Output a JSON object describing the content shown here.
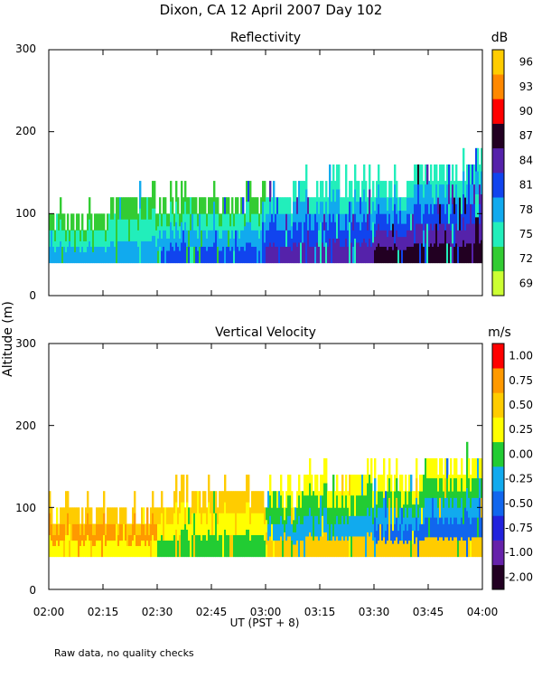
{
  "figure": {
    "title": "Dixon, CA 12 April 2007  Day 102",
    "ylabel": "Altitude (m)",
    "xlabel": "UT  (PST + 8)",
    "footnote": "Raw data, no quality checks"
  },
  "chart_data": [
    {
      "type": "heatmap",
      "title": "Reflectivity",
      "unit": "dB",
      "xticks": [
        "02:00",
        "02:15",
        "02:30",
        "02:45",
        "03:00",
        "03:15",
        "03:30",
        "03:45",
        "04:00"
      ],
      "yticks": [
        "0",
        "100",
        "200",
        "300"
      ],
      "ylim": [
        0,
        300
      ],
      "color_scale": {
        "labels": [
          "69",
          "72",
          "75",
          "78",
          "81",
          "84",
          "87",
          "90",
          "93",
          "96"
        ],
        "colors": [
          "#ccff33",
          "#33cc33",
          "#22eebb",
          "#11aaee",
          "#1144ee",
          "#5522aa",
          "#220022",
          "#ff0000",
          "#ff8800",
          "#ffcc00"
        ]
      },
      "field": {
        "x_range": [
          "02:00",
          "04:00"
        ],
        "base_m": 40,
        "top_m": [
          100,
          120,
          120,
          120,
          140,
          140,
          160
        ],
        "dominant_by_segment": [
          {
            "from": "02:00",
            "to": "02:30",
            "layers": [
              "#33cc33",
              "#22eebb",
              "#11aaee"
            ]
          },
          {
            "from": "02:30",
            "to": "03:00",
            "layers": [
              "#33cc33",
              "#22eebb",
              "#11aaee",
              "#1144ee"
            ]
          },
          {
            "from": "03:00",
            "to": "03:30",
            "layers": [
              "#22eebb",
              "#11aaee",
              "#1144ee",
              "#5522aa"
            ]
          },
          {
            "from": "03:30",
            "to": "04:00",
            "layers": [
              "#22eebb",
              "#11aaee",
              "#1144ee",
              "#5522aa",
              "#220022"
            ]
          }
        ]
      }
    },
    {
      "type": "heatmap",
      "title": "Vertical Velocity",
      "unit": "m/s",
      "xticks": [
        "02:00",
        "02:15",
        "02:30",
        "02:45",
        "03:00",
        "03:15",
        "03:30",
        "03:45",
        "04:00"
      ],
      "yticks": [
        "0",
        "100",
        "200",
        "300"
      ],
      "ylim": [
        0,
        300
      ],
      "color_scale": {
        "labels": [
          "-2.00",
          "-1.00",
          "-0.75",
          "-0.50",
          "-0.25",
          "0.00",
          "0.25",
          "0.50",
          "0.75",
          "1.00"
        ],
        "colors": [
          "#220022",
          "#6622aa",
          "#2222dd",
          "#1166ee",
          "#11aaee",
          "#22cc33",
          "#ffff00",
          "#ffcc00",
          "#ff9900",
          "#ff0000"
        ]
      },
      "field": {
        "x_range": [
          "02:00",
          "04:00"
        ],
        "base_m": 40,
        "top_m": [
          100,
          100,
          120,
          120,
          140,
          140,
          160
        ],
        "dominant_by_segment": [
          {
            "from": "02:00",
            "to": "02:30",
            "layers": [
              "#ffcc00",
              "#ff9900",
              "#ffff00"
            ]
          },
          {
            "from": "02:30",
            "to": "03:00",
            "layers": [
              "#ffcc00",
              "#ffff00",
              "#22cc33"
            ]
          },
          {
            "from": "03:00",
            "to": "03:30",
            "layers": [
              "#ffff00",
              "#22cc33",
              "#11aaee",
              "#ffcc00"
            ]
          },
          {
            "from": "03:30",
            "to": "04:00",
            "layers": [
              "#ffff00",
              "#22cc33",
              "#11aaee",
              "#1166ee",
              "#ffcc00"
            ]
          }
        ]
      }
    }
  ]
}
